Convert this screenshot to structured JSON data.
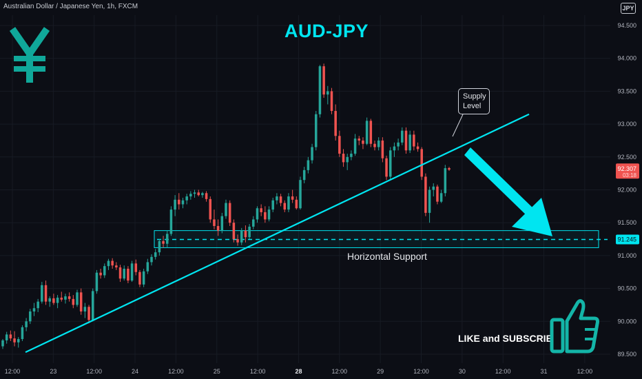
{
  "header": {
    "symbol": "Australian Dollar / Japanese Yen, 1h, FXCM",
    "currency": "JPY"
  },
  "title": "AUD-JPY",
  "annotations": {
    "supply_bubble": [
      "Supply",
      "Level"
    ],
    "support_label": "Horizontal Support",
    "cta": "LIKE and SUBSCRIBE"
  },
  "icons": [
    "yen-icon",
    "thumbs-up-icon"
  ],
  "colors": {
    "background": "#0c0e15",
    "up": "#26a69a",
    "down": "#ef5350",
    "accent": "#00e5f0",
    "text": "#b2b5be",
    "grid": "#171b24"
  },
  "price_axis": {
    "ticks": [
      "94.500",
      "94.000",
      "93.500",
      "93.000",
      "92.500",
      "92.000",
      "91.500",
      "91.000",
      "90.500",
      "90.000",
      "89.500"
    ],
    "last_price": "92.307",
    "countdown": "03:18",
    "support_price": "91.245"
  },
  "time_axis": {
    "ticks": [
      "12:00",
      "23",
      "12:00",
      "24",
      "12:00",
      "25",
      "12:00",
      "28",
      "12:00",
      "29",
      "12:00",
      "30",
      "12:00",
      "31",
      "12:00"
    ]
  },
  "chart_data": {
    "type": "candlestick",
    "pair": "AUD/JPY",
    "timeframe": "1h",
    "ylim": [
      89.45,
      94.7
    ],
    "grid": true,
    "candles": [
      [
        89.62,
        89.73,
        89.58,
        89.71
      ],
      [
        89.71,
        89.84,
        89.66,
        89.8
      ],
      [
        89.8,
        89.86,
        89.7,
        89.74
      ],
      [
        89.74,
        89.85,
        89.62,
        89.68
      ],
      [
        89.68,
        89.76,
        89.6,
        89.73
      ],
      [
        89.73,
        89.94,
        89.7,
        89.91
      ],
      [
        89.91,
        90.05,
        89.85,
        90.0
      ],
      [
        90.0,
        90.19,
        89.96,
        90.15
      ],
      [
        90.15,
        90.28,
        90.08,
        90.2
      ],
      [
        90.2,
        90.34,
        90.14,
        90.3
      ],
      [
        90.3,
        90.6,
        90.27,
        90.55
      ],
      [
        90.55,
        90.62,
        90.25,
        90.3
      ],
      [
        90.3,
        90.38,
        90.22,
        90.35
      ],
      [
        90.35,
        90.42,
        90.25,
        90.28
      ],
      [
        90.28,
        90.4,
        90.2,
        90.36
      ],
      [
        90.36,
        90.45,
        90.3,
        90.33
      ],
      [
        90.33,
        90.42,
        90.27,
        90.38
      ],
      [
        90.38,
        90.44,
        90.3,
        90.34
      ],
      [
        90.34,
        90.4,
        90.2,
        90.25
      ],
      [
        90.25,
        90.48,
        90.22,
        90.44
      ],
      [
        90.44,
        90.5,
        90.1,
        90.15
      ],
      [
        90.15,
        90.28,
        90.05,
        90.22
      ],
      [
        90.22,
        90.25,
        89.97,
        90.02
      ],
      [
        90.02,
        90.5,
        90.0,
        90.46
      ],
      [
        90.46,
        90.78,
        90.42,
        90.74
      ],
      [
        90.74,
        90.8,
        90.65,
        90.7
      ],
      [
        90.7,
        90.88,
        90.66,
        90.84
      ],
      [
        90.84,
        90.95,
        90.78,
        90.92
      ],
      [
        90.92,
        90.96,
        90.8,
        90.85
      ],
      [
        90.85,
        90.9,
        90.78,
        90.82
      ],
      [
        90.82,
        90.86,
        90.6,
        90.65
      ],
      [
        90.65,
        90.85,
        90.62,
        90.8
      ],
      [
        90.8,
        90.84,
        90.58,
        90.62
      ],
      [
        90.62,
        90.92,
        90.6,
        90.88
      ],
      [
        90.88,
        90.94,
        90.7,
        90.75
      ],
      [
        90.75,
        90.78,
        90.52,
        90.56
      ],
      [
        90.56,
        90.8,
        90.52,
        90.76
      ],
      [
        90.76,
        90.95,
        90.72,
        90.9
      ],
      [
        90.9,
        91.02,
        90.85,
        90.98
      ],
      [
        90.98,
        91.1,
        90.94,
        91.05
      ],
      [
        91.05,
        91.25,
        91.0,
        91.22
      ],
      [
        91.22,
        91.3,
        91.12,
        91.18
      ],
      [
        91.18,
        91.38,
        91.12,
        91.33
      ],
      [
        91.33,
        91.75,
        91.3,
        91.7
      ],
      [
        91.7,
        91.92,
        91.6,
        91.85
      ],
      [
        91.85,
        91.95,
        91.7,
        91.78
      ],
      [
        91.78,
        91.88,
        91.72,
        91.84
      ],
      [
        91.84,
        91.94,
        91.78,
        91.9
      ],
      [
        91.9,
        91.98,
        91.85,
        91.94
      ],
      [
        91.94,
        92.0,
        91.88,
        91.96
      ],
      [
        91.96,
        92.0,
        91.9,
        91.92
      ],
      [
        91.92,
        91.97,
        91.88,
        91.95
      ],
      [
        91.95,
        91.98,
        91.82,
        91.86
      ],
      [
        91.86,
        91.9,
        91.5,
        91.55
      ],
      [
        91.55,
        91.7,
        91.4,
        91.45
      ],
      [
        91.45,
        91.55,
        91.3,
        91.38
      ],
      [
        91.38,
        91.65,
        91.34,
        91.6
      ],
      [
        91.6,
        91.85,
        91.56,
        91.8
      ],
      [
        91.8,
        91.84,
        91.45,
        91.5
      ],
      [
        91.5,
        91.55,
        91.2,
        91.25
      ],
      [
        91.25,
        91.32,
        91.15,
        91.2
      ],
      [
        91.2,
        91.42,
        91.16,
        91.38
      ],
      [
        91.38,
        91.46,
        91.2,
        91.28
      ],
      [
        91.28,
        91.48,
        91.25,
        91.44
      ],
      [
        91.44,
        91.6,
        91.4,
        91.55
      ],
      [
        91.55,
        91.75,
        91.5,
        91.72
      ],
      [
        91.72,
        91.78,
        91.6,
        91.66
      ],
      [
        91.66,
        91.75,
        91.5,
        91.55
      ],
      [
        91.55,
        91.75,
        91.52,
        91.7
      ],
      [
        91.7,
        91.88,
        91.66,
        91.84
      ],
      [
        91.84,
        91.95,
        91.78,
        91.9
      ],
      [
        91.9,
        91.94,
        91.75,
        91.8
      ],
      [
        91.8,
        91.84,
        91.66,
        91.7
      ],
      [
        91.7,
        91.95,
        91.66,
        91.9
      ],
      [
        91.9,
        92.0,
        91.8,
        91.85
      ],
      [
        91.85,
        91.9,
        91.7,
        91.72
      ],
      [
        91.72,
        92.2,
        91.7,
        92.15
      ],
      [
        92.15,
        92.35,
        92.1,
        92.3
      ],
      [
        92.3,
        92.5,
        92.25,
        92.45
      ],
      [
        92.45,
        92.7,
        92.4,
        92.65
      ],
      [
        92.65,
        93.2,
        92.6,
        93.15
      ],
      [
        93.15,
        93.9,
        93.1,
        93.88
      ],
      [
        93.88,
        93.92,
        93.4,
        93.45
      ],
      [
        93.45,
        93.58,
        93.3,
        93.5
      ],
      [
        93.5,
        93.55,
        93.15,
        93.2
      ],
      [
        93.2,
        93.3,
        92.75,
        92.82
      ],
      [
        92.82,
        92.9,
        92.5,
        92.55
      ],
      [
        92.55,
        92.62,
        92.35,
        92.42
      ],
      [
        92.42,
        92.55,
        92.3,
        92.5
      ],
      [
        92.5,
        92.6,
        92.45,
        92.55
      ],
      [
        92.55,
        92.85,
        92.52,
        92.78
      ],
      [
        92.78,
        92.82,
        92.68,
        92.75
      ],
      [
        92.75,
        92.8,
        92.62,
        92.7
      ],
      [
        92.7,
        93.1,
        92.68,
        93.05
      ],
      [
        93.05,
        93.08,
        92.65,
        92.7
      ],
      [
        92.7,
        92.75,
        92.6,
        92.65
      ],
      [
        92.65,
        92.8,
        92.6,
        92.75
      ],
      [
        92.75,
        92.8,
        92.42,
        92.48
      ],
      [
        92.48,
        92.52,
        92.15,
        92.2
      ],
      [
        92.2,
        92.65,
        92.16,
        92.6
      ],
      [
        92.6,
        92.72,
        92.5,
        92.66
      ],
      [
        92.66,
        92.78,
        92.6,
        92.72
      ],
      [
        92.72,
        92.95,
        92.68,
        92.9
      ],
      [
        92.9,
        92.95,
        92.55,
        92.6
      ],
      [
        92.6,
        92.9,
        92.56,
        92.84
      ],
      [
        92.84,
        92.9,
        92.6,
        92.66
      ],
      [
        92.66,
        92.72,
        92.58,
        92.62
      ],
      [
        92.62,
        92.65,
        92.15,
        92.2
      ],
      [
        92.2,
        92.25,
        91.6,
        91.65
      ],
      [
        91.65,
        92.05,
        91.5,
        92.0
      ],
      [
        92.0,
        92.1,
        91.9,
        92.05
      ],
      [
        92.05,
        92.08,
        91.78,
        91.82
      ],
      [
        91.82,
        92.0,
        91.8,
        91.95
      ],
      [
        91.95,
        92.38,
        91.9,
        92.33
      ],
      [
        92.33,
        92.35,
        92.29,
        92.307
      ]
    ],
    "trendline": {
      "from": [
        89.53
      ],
      "to": [
        93.15
      ],
      "label": ""
    },
    "support_zone": {
      "low": 91.12,
      "high": 91.38,
      "level": 91.245,
      "label": "Horizontal Support"
    }
  }
}
